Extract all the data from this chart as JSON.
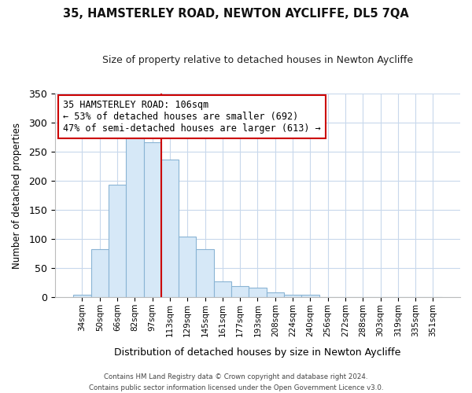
{
  "title": "35, HAMSTERLEY ROAD, NEWTON AYCLIFFE, DL5 7QA",
  "subtitle": "Size of property relative to detached houses in Newton Aycliffe",
  "xlabel": "Distribution of detached houses by size in Newton Aycliffe",
  "ylabel": "Number of detached properties",
  "bar_labels": [
    "34sqm",
    "50sqm",
    "66sqm",
    "82sqm",
    "97sqm",
    "113sqm",
    "129sqm",
    "145sqm",
    "161sqm",
    "177sqm",
    "193sqm",
    "208sqm",
    "224sqm",
    "240sqm",
    "256sqm",
    "272sqm",
    "288sqm",
    "303sqm",
    "319sqm",
    "335sqm",
    "351sqm"
  ],
  "bar_values": [
    5,
    83,
    194,
    274,
    266,
    236,
    105,
    83,
    28,
    20,
    17,
    8,
    5,
    5,
    1,
    0,
    0,
    0,
    1,
    0,
    1
  ],
  "bar_color": "#d6e8f7",
  "bar_edge_color": "#8ab4d4",
  "vline_x_index": 4.5,
  "vline_color": "#cc0000",
  "annotation_line0": "35 HAMSTERLEY ROAD: 106sqm",
  "annotation_line1": "← 53% of detached houses are smaller (692)",
  "annotation_line2": "47% of semi-detached houses are larger (613) →",
  "ylim": [
    0,
    350
  ],
  "yticks": [
    0,
    50,
    100,
    150,
    200,
    250,
    300,
    350
  ],
  "footer1": "Contains HM Land Registry data © Crown copyright and database right 2024.",
  "footer2": "Contains public sector information licensed under the Open Government Licence v3.0.",
  "bg_color": "#ffffff",
  "grid_color": "#c8d8ec"
}
